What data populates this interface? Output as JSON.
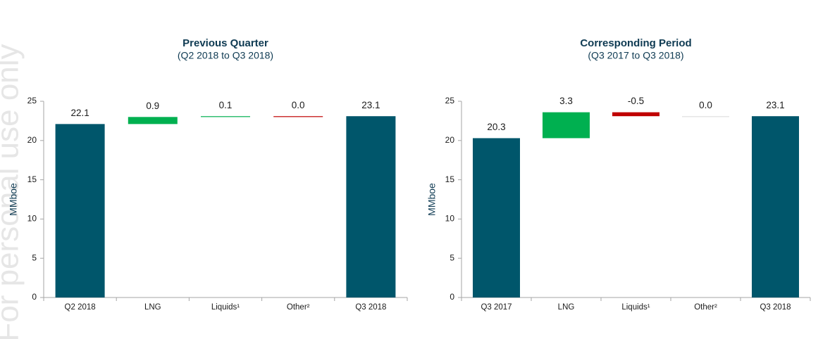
{
  "watermark": "For personal use only",
  "chart_data": [
    {
      "type": "waterfall",
      "title": "Previous Quarter",
      "subtitle": "(Q2 2018 to Q3 2018)",
      "y_label": "MMboe",
      "categories": [
        "Q2 2018",
        "LNG",
        "Liquids¹",
        "Other²",
        "Q3 2018"
      ],
      "values": [
        22.1,
        0.9,
        0.1,
        0.0,
        23.1
      ],
      "value_labels": [
        "22.1",
        "0.9",
        "0.1",
        "0.0",
        "23.1"
      ],
      "totals": [
        true,
        false,
        false,
        false,
        true
      ],
      "colors": [
        "#00566b",
        "#00b050",
        "#00b050",
        "#c00000",
        "#00566b"
      ],
      "ylim": [
        0,
        25
      ],
      "yticks": [
        0,
        5,
        10,
        15,
        20,
        25
      ]
    },
    {
      "type": "waterfall",
      "title": "Corresponding Period",
      "subtitle": "(Q3 2017 to Q3 2018)",
      "y_label": "MMboe",
      "categories": [
        "Q3 2017",
        "LNG",
        "Liquids¹",
        "Other²",
        "Q3 2018"
      ],
      "values": [
        20.3,
        3.3,
        -0.5,
        0.0,
        23.1
      ],
      "value_labels": [
        "20.3",
        "3.3",
        "-0.5",
        "0.0",
        "23.1"
      ],
      "totals": [
        true,
        false,
        false,
        false,
        true
      ],
      "colors": [
        "#00566b",
        "#00b050",
        "#c00000",
        "#e0e0e0",
        "#00566b"
      ],
      "ylim": [
        0,
        25
      ],
      "yticks": [
        0,
        5,
        10,
        15,
        20,
        25
      ]
    }
  ]
}
